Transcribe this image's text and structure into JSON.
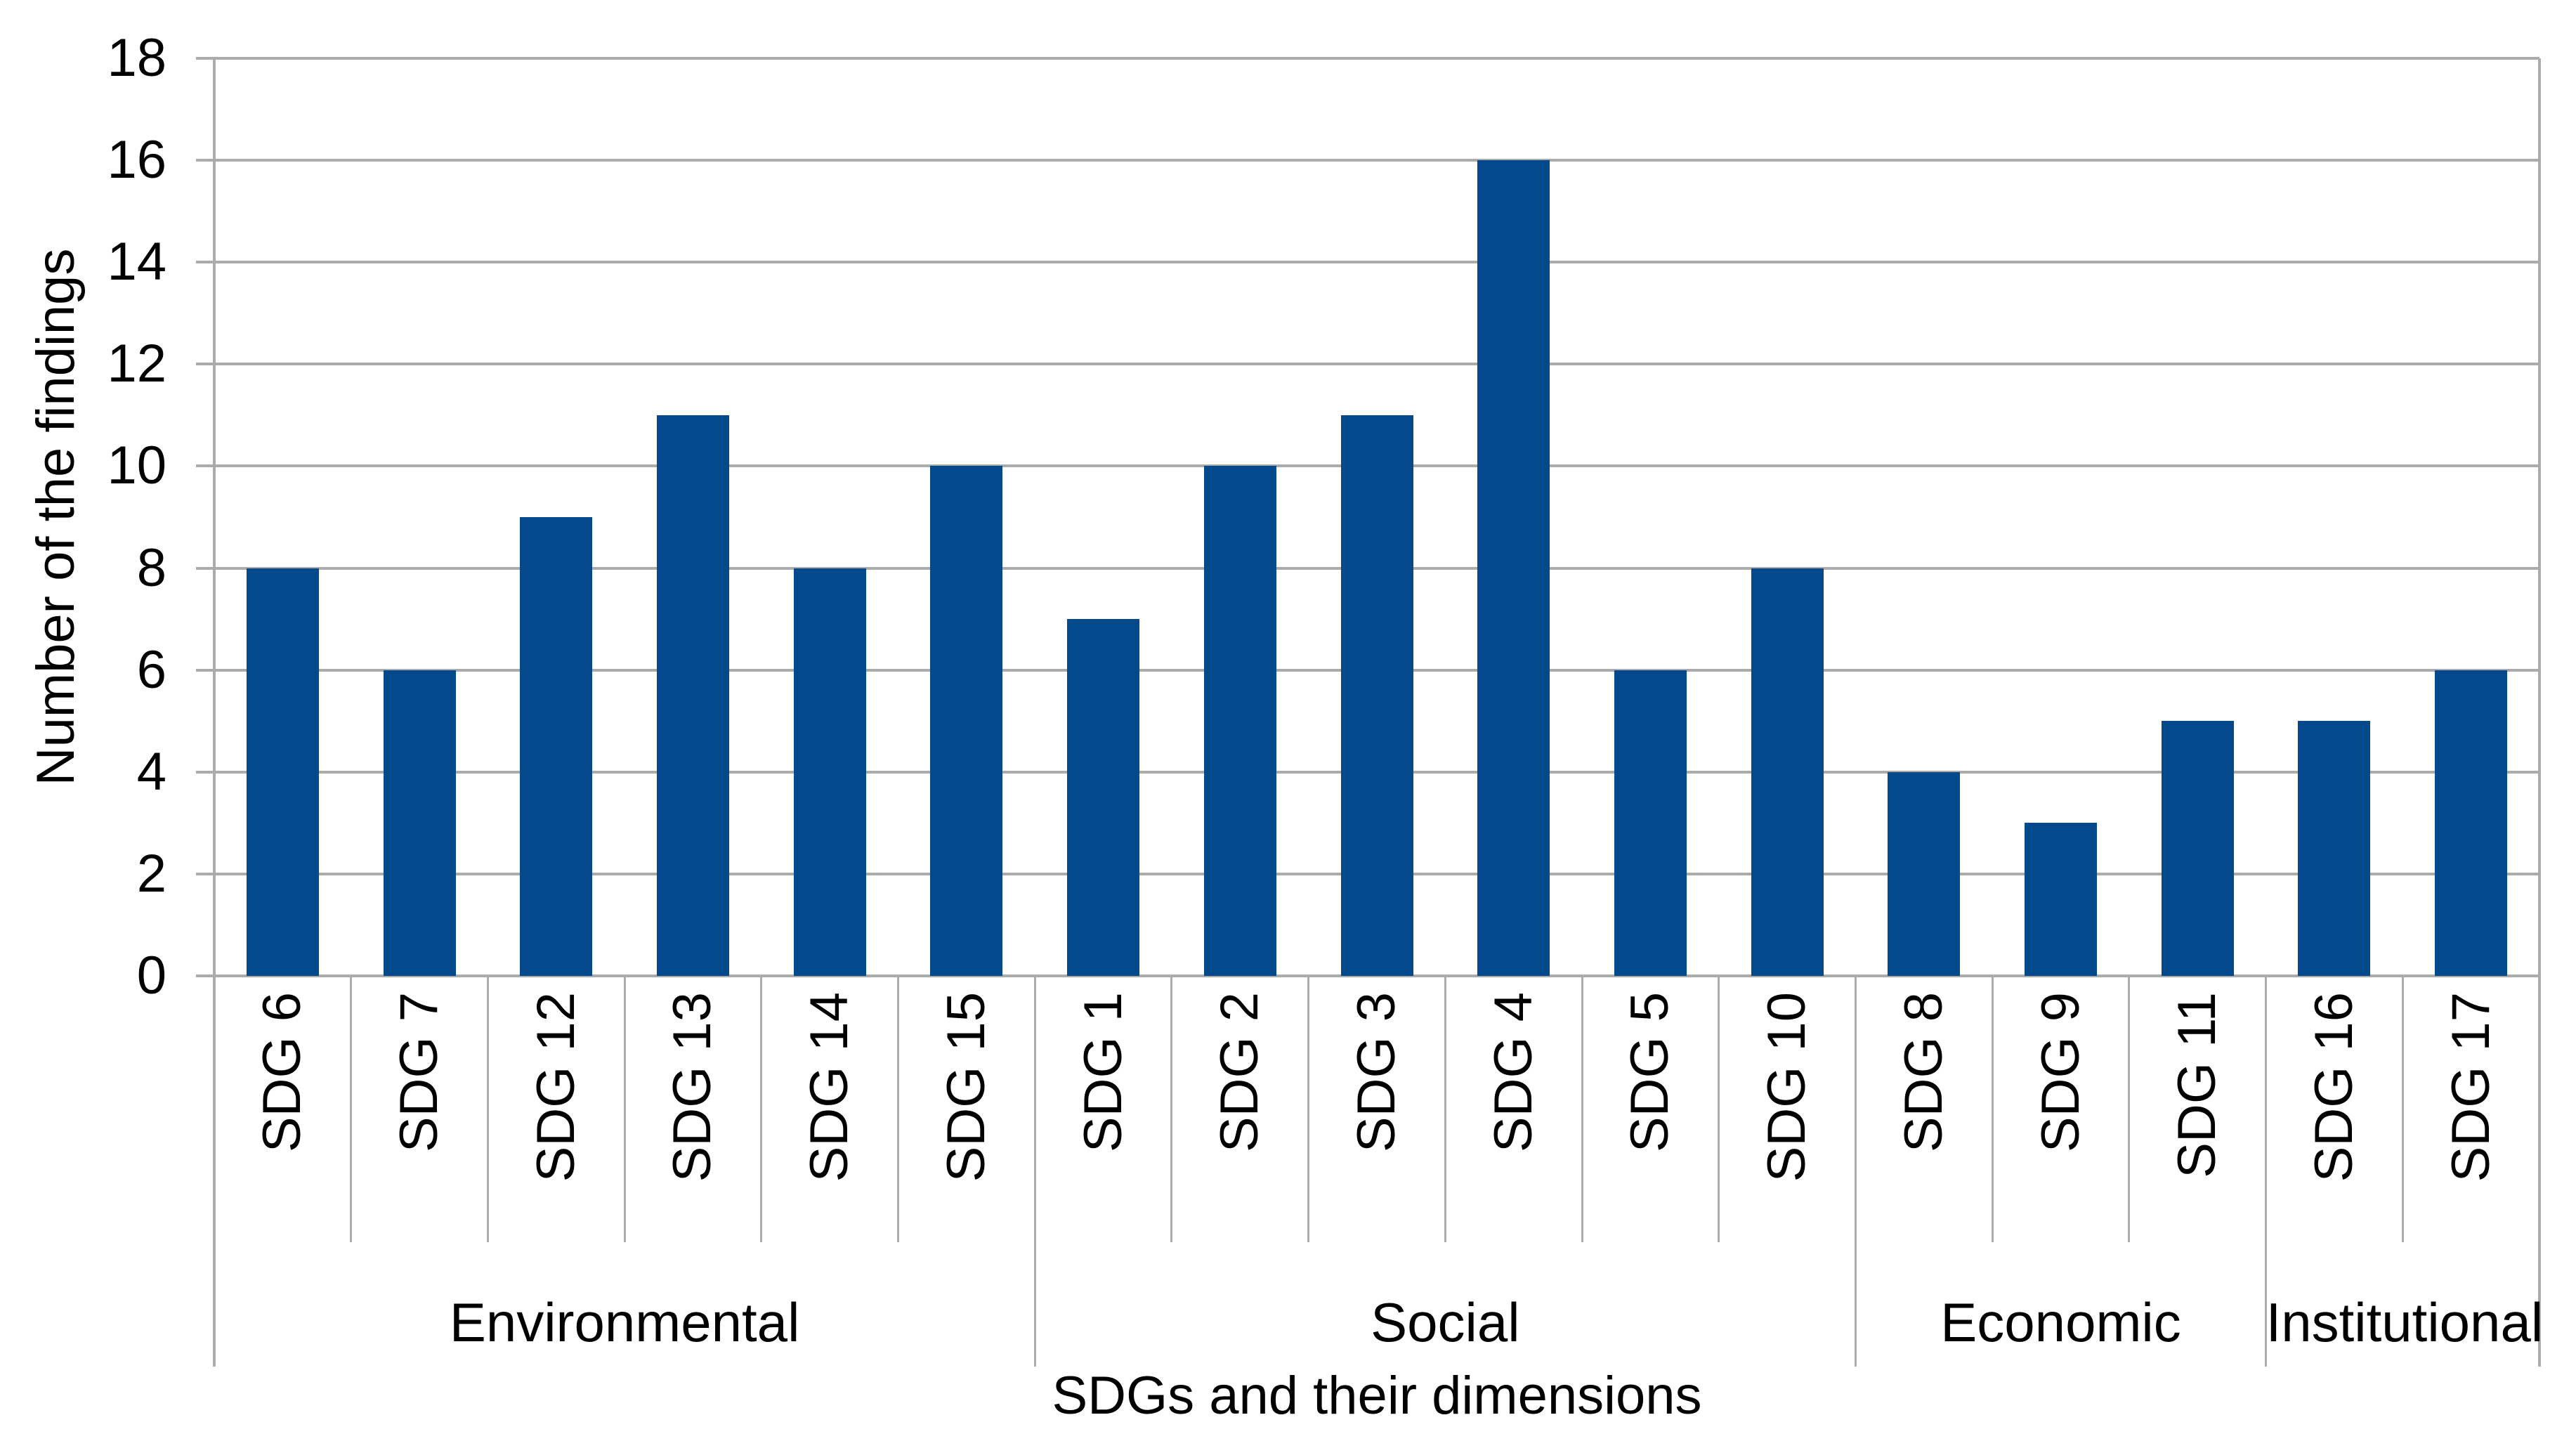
{
  "chart_data": {
    "type": "bar",
    "title": "",
    "xlabel": "SDGs and their dimensions",
    "ylabel": "Number of the findings",
    "ylim": [
      0,
      18
    ],
    "yticks": [
      0,
      2,
      4,
      6,
      8,
      10,
      12,
      14,
      16,
      18
    ],
    "grid": "horizontal-on",
    "legend_position": "none",
    "bar_color": "#04498C",
    "axis_color": "#ABABAB",
    "text_color": "#000000",
    "groups": [
      {
        "label": "Environmental",
        "categories": [
          "SDG 6",
          "SDG 7",
          "SDG 12",
          "SDG 13",
          "SDG 14",
          "SDG 15"
        ],
        "values": [
          8,
          6,
          9,
          11,
          8,
          10
        ]
      },
      {
        "label": "Social",
        "categories": [
          "SDG 1",
          "SDG 2",
          "SDG 3",
          "SDG 4",
          "SDG 5",
          "SDG 10"
        ],
        "values": [
          7,
          10,
          11,
          16,
          6,
          8
        ]
      },
      {
        "label": "Economic",
        "categories": [
          "SDG 8",
          "SDG 9",
          "SDG 11"
        ],
        "values": [
          4,
          3,
          5
        ]
      },
      {
        "label": "Institutional",
        "categories": [
          "SDG 16",
          "SDG 17"
        ],
        "values": [
          5,
          6
        ]
      }
    ]
  }
}
